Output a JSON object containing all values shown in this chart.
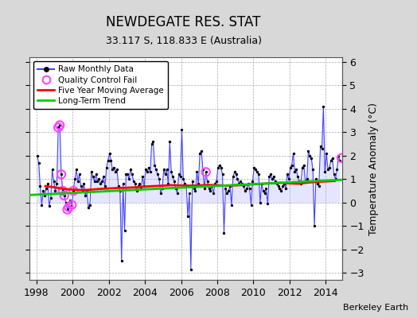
{
  "title": "NEWDEGATE RES. STAT",
  "subtitle": "33.117 S, 118.833 E (Australia)",
  "ylabel": "Temperature Anomaly (°C)",
  "credit": "Berkeley Earth",
  "ylim": [
    -3.3,
    6.2
  ],
  "xlim": [
    1997.6,
    2014.9
  ],
  "yticks": [
    -3,
    -2,
    -1,
    0,
    1,
    2,
    3,
    4,
    5,
    6
  ],
  "xticks": [
    1998,
    2000,
    2002,
    2004,
    2006,
    2008,
    2010,
    2012,
    2014
  ],
  "bg_color": "#d8d8d8",
  "plot_bg": "#ffffff",
  "raw_color": "#4444ff",
  "raw_fill": "#aaaaff",
  "dot_color": "#000000",
  "moving_avg_color": "#ff0000",
  "trend_color": "#00cc00",
  "qc_fail_color": "#ff44ff",
  "raw_data": {
    "dates": [
      1998.042,
      1998.125,
      1998.208,
      1998.292,
      1998.375,
      1998.458,
      1998.542,
      1998.625,
      1998.708,
      1998.792,
      1998.875,
      1998.958,
      1999.042,
      1999.125,
      1999.208,
      1999.292,
      1999.375,
      1999.458,
      1999.542,
      1999.625,
      1999.708,
      1999.792,
      1999.875,
      1999.958,
      2000.042,
      2000.125,
      2000.208,
      2000.292,
      2000.375,
      2000.458,
      2000.542,
      2000.625,
      2000.708,
      2000.792,
      2000.875,
      2000.958,
      2001.042,
      2001.125,
      2001.208,
      2001.292,
      2001.375,
      2001.458,
      2001.542,
      2001.625,
      2001.708,
      2001.792,
      2001.875,
      2001.958,
      2002.042,
      2002.125,
      2002.208,
      2002.292,
      2002.375,
      2002.458,
      2002.542,
      2002.625,
      2002.708,
      2002.792,
      2002.875,
      2002.958,
      2003.042,
      2003.125,
      2003.208,
      2003.292,
      2003.375,
      2003.458,
      2003.542,
      2003.625,
      2003.708,
      2003.792,
      2003.875,
      2003.958,
      2004.042,
      2004.125,
      2004.208,
      2004.292,
      2004.375,
      2004.458,
      2004.542,
      2004.625,
      2004.708,
      2004.792,
      2004.875,
      2004.958,
      2005.042,
      2005.125,
      2005.208,
      2005.292,
      2005.375,
      2005.458,
      2005.542,
      2005.625,
      2005.708,
      2005.792,
      2005.875,
      2005.958,
      2006.042,
      2006.125,
      2006.208,
      2006.292,
      2006.375,
      2006.458,
      2006.542,
      2006.625,
      2006.708,
      2006.792,
      2006.875,
      2006.958,
      2007.042,
      2007.125,
      2007.208,
      2007.292,
      2007.375,
      2007.458,
      2007.542,
      2007.625,
      2007.708,
      2007.792,
      2007.875,
      2007.958,
      2008.042,
      2008.125,
      2008.208,
      2008.292,
      2008.375,
      2008.458,
      2008.542,
      2008.625,
      2008.708,
      2008.792,
      2008.875,
      2008.958,
      2009.042,
      2009.125,
      2009.208,
      2009.292,
      2009.375,
      2009.458,
      2009.542,
      2009.625,
      2009.708,
      2009.792,
      2009.875,
      2009.958,
      2010.042,
      2010.125,
      2010.208,
      2010.292,
      2010.375,
      2010.458,
      2010.542,
      2010.625,
      2010.708,
      2010.792,
      2010.875,
      2010.958,
      2011.042,
      2011.125,
      2011.208,
      2011.292,
      2011.375,
      2011.458,
      2011.542,
      2011.625,
      2011.708,
      2011.792,
      2011.875,
      2011.958,
      2012.042,
      2012.125,
      2012.208,
      2012.292,
      2012.375,
      2012.458,
      2012.542,
      2012.625,
      2012.708,
      2012.792,
      2012.875,
      2012.958,
      2013.042,
      2013.125,
      2013.208,
      2013.292,
      2013.375,
      2013.458,
      2013.542,
      2013.625,
      2013.708,
      2013.792,
      2013.875,
      2013.958,
      2014.042,
      2014.125,
      2014.208,
      2014.292,
      2014.375,
      2014.458,
      2014.542,
      2014.625,
      2014.708,
      2014.792
    ],
    "values": [
      2.0,
      1.7,
      0.7,
      -0.1,
      0.5,
      0.3,
      0.6,
      0.8,
      -0.15,
      0.2,
      1.4,
      0.9,
      0.5,
      0.8,
      3.2,
      3.3,
      1.2,
      0.5,
      0.3,
      0.0,
      -0.3,
      -0.2,
      0.1,
      -0.1,
      0.5,
      1.0,
      1.4,
      0.9,
      1.2,
      0.7,
      0.5,
      0.8,
      0.3,
      0.5,
      -0.2,
      -0.1,
      1.3,
      1.1,
      0.9,
      1.2,
      0.9,
      1.0,
      0.8,
      0.9,
      1.1,
      0.7,
      1.5,
      1.8,
      2.1,
      1.8,
      1.4,
      1.5,
      1.3,
      1.4,
      0.7,
      0.5,
      -2.5,
      0.8,
      -1.2,
      1.2,
      1.2,
      1.0,
      1.4,
      1.2,
      0.9,
      0.8,
      0.5,
      0.7,
      0.8,
      0.6,
      1.1,
      0.7,
      1.4,
      1.3,
      1.5,
      1.3,
      2.5,
      2.6,
      1.6,
      1.4,
      1.2,
      1.0,
      0.4,
      0.6,
      1.4,
      1.2,
      1.4,
      0.8,
      2.6,
      1.3,
      1.1,
      0.9,
      0.6,
      0.4,
      1.2,
      1.1,
      3.1,
      1.0,
      0.8,
      0.7,
      -0.6,
      0.4,
      -2.85,
      0.9,
      0.6,
      0.5,
      1.3,
      0.8,
      2.1,
      2.2,
      1.4,
      0.6,
      1.3,
      0.9,
      0.6,
      0.5,
      0.7,
      0.4,
      0.8,
      0.9,
      1.5,
      1.6,
      1.5,
      1.2,
      -1.3,
      0.6,
      0.4,
      0.5,
      0.7,
      -0.1,
      1.1,
      1.3,
      1.2,
      1.0,
      0.8,
      0.9,
      0.8,
      0.7,
      0.5,
      0.6,
      0.8,
      0.6,
      -0.1,
      0.9,
      1.5,
      1.4,
      1.3,
      1.2,
      0.0,
      0.8,
      0.5,
      0.4,
      0.6,
      -0.05,
      1.1,
      1.2,
      1.0,
      1.1,
      0.9,
      0.8,
      0.7,
      0.6,
      0.5,
      0.7,
      0.8,
      0.6,
      1.2,
      1.0,
      1.5,
      1.6,
      2.1,
      1.3,
      1.4,
      1.1,
      0.9,
      0.8,
      1.5,
      1.6,
      0.9,
      1.0,
      2.2,
      2.0,
      1.9,
      1.4,
      -1.0,
      1.0,
      0.8,
      0.7,
      2.4,
      2.3,
      4.1,
      1.3,
      2.1,
      1.4,
      1.5,
      1.8,
      1.9,
      1.2,
      1.0,
      1.4,
      2.0,
      1.8
    ]
  },
  "qc_fail_points": [
    [
      1999.208,
      3.2
    ],
    [
      1999.292,
      3.3
    ],
    [
      1999.375,
      1.2
    ],
    [
      1999.458,
      0.5
    ],
    [
      1999.542,
      0.3
    ],
    [
      1999.708,
      -0.3
    ],
    [
      1999.792,
      -0.2
    ],
    [
      1999.958,
      -0.1
    ],
    [
      2000.042,
      0.5
    ],
    [
      2007.375,
      1.3
    ],
    [
      2014.875,
      1.9
    ]
  ],
  "moving_avg": {
    "dates": [
      1998.5,
      1999.0,
      1999.5,
      2000.0,
      2000.5,
      2001.0,
      2001.5,
      2002.0,
      2002.5,
      2003.0,
      2003.5,
      2004.0,
      2004.5,
      2005.0,
      2005.5,
      2006.0,
      2006.5,
      2007.0,
      2007.5,
      2008.0,
      2008.5,
      2009.0,
      2009.5,
      2010.0,
      2010.5,
      2011.0,
      2011.5,
      2012.0,
      2012.5,
      2013.0,
      2013.5,
      2014.0,
      2014.5
    ],
    "values": [
      0.7,
      0.65,
      0.58,
      0.55,
      0.53,
      0.55,
      0.58,
      0.6,
      0.62,
      0.63,
      0.65,
      0.68,
      0.7,
      0.72,
      0.74,
      0.73,
      0.72,
      0.73,
      0.75,
      0.74,
      0.72,
      0.73,
      0.75,
      0.78,
      0.8,
      0.82,
      0.84,
      0.82,
      0.8,
      0.85,
      0.88,
      0.9,
      0.92
    ]
  },
  "trend": {
    "dates": [
      1997.6,
      2014.9
    ],
    "values": [
      0.32,
      0.97
    ]
  }
}
